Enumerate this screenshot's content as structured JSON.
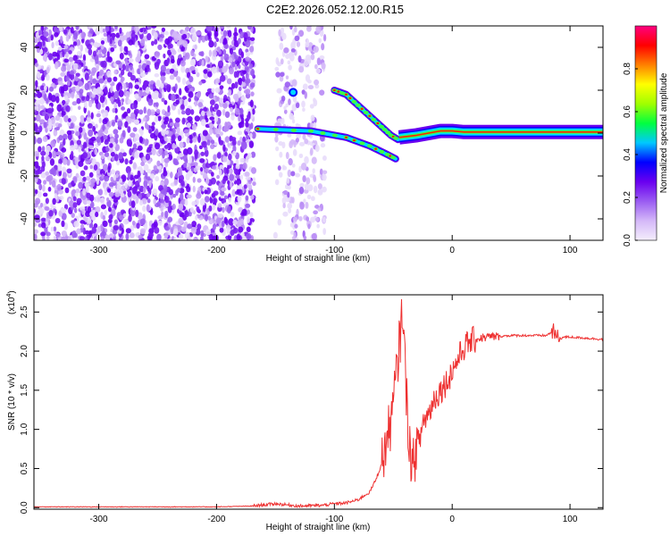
{
  "title": "C2E2.2026.052.12.00.R15",
  "chart_data": [
    {
      "type": "heatmap",
      "xlabel": "Height of straight line (km)",
      "ylabel": "Frequency (Hz)",
      "xlim": [
        -355,
        128
      ],
      "ylim": [
        -50,
        50
      ],
      "x_ticks": [
        -300,
        -200,
        -100,
        0,
        100
      ],
      "y_ticks": [
        -40,
        -20,
        0,
        20,
        40
      ],
      "colorbar": {
        "label": "Normalized spectral amplitude",
        "range": [
          0,
          1
        ],
        "ticks": [
          "0.0",
          "0.2",
          "0.4",
          "0.6",
          "0.8"
        ],
        "colors": [
          "#f4eefc",
          "#d4b8f8",
          "#9a5cf2",
          "#6a00f0",
          "#0000ff",
          "#00c8ff",
          "#00ff40",
          "#a0ff00",
          "#ffff00",
          "#ff8000",
          "#ff0000",
          "#ff0080"
        ]
      },
      "features": {
        "noise_region_x": [
          -355,
          -168
        ],
        "noise_band_2_x": [
          -150,
          -108
        ],
        "carrier_line": [
          [
            -165,
            2
          ],
          [
            -120,
            1
          ],
          [
            -90,
            -2
          ],
          [
            -70,
            -6
          ],
          [
            -55,
            -10
          ],
          [
            -48,
            -12
          ]
        ],
        "upper_arc": [
          [
            -100,
            20
          ],
          [
            -90,
            18
          ],
          [
            -80,
            13
          ],
          [
            -70,
            8
          ],
          [
            -60,
            3
          ],
          [
            -52,
            -1
          ],
          [
            -46,
            -3
          ]
        ],
        "isolated_blob": [
          -135,
          19
        ],
        "converged_line": [
          [
            -45,
            -2
          ],
          [
            -30,
            -1
          ],
          [
            -10,
            1
          ],
          [
            0,
            1
          ],
          [
            10,
            0.5
          ],
          [
            128,
            0.5
          ]
        ]
      }
    },
    {
      "type": "line",
      "xlabel": "Height of straight line (km)",
      "ylabel": "SNR (10 * v/v)",
      "y_multiplier": "(x10",
      "y_multiplier_exp": "4",
      "y_multiplier_close": ")",
      "xlim": [
        -355,
        128
      ],
      "ylim": [
        -0.02,
        2.72
      ],
      "x_ticks": [
        -300,
        -200,
        -100,
        0,
        100
      ],
      "y_ticks": [
        "0.0",
        "0.5",
        "1.0",
        "1.5",
        "2.0",
        "2.5"
      ],
      "color": "#ee3030",
      "series": [
        {
          "x": [
            -355,
            -300,
            -250,
            -200,
            -170,
            -150,
            -130,
            -110,
            -100,
            -90,
            -80,
            -70,
            -65,
            -60,
            -55,
            -52,
            -50,
            -48,
            -46,
            -44,
            -42,
            -40,
            -38,
            -36,
            -34,
            -32,
            -30,
            -28,
            -25,
            -20,
            -15,
            -10,
            -5,
            0,
            5,
            10,
            15,
            20,
            25,
            30,
            40,
            50,
            60,
            70,
            80,
            85,
            88,
            90,
            95,
            100,
            110,
            120,
            128
          ],
          "y": [
            0.01,
            0.01,
            0.01,
            0.01,
            0.02,
            0.05,
            0.02,
            0.03,
            0.05,
            0.06,
            0.1,
            0.2,
            0.35,
            0.55,
            0.9,
            1.1,
            1.3,
            1.6,
            1.9,
            2.2,
            2.6,
            1.8,
            1.2,
            0.8,
            0.5,
            0.6,
            0.9,
            0.8,
            1.1,
            1.2,
            1.4,
            1.5,
            1.6,
            1.75,
            1.9,
            2.05,
            2.12,
            2.15,
            2.17,
            2.18,
            2.19,
            2.2,
            2.2,
            2.2,
            2.2,
            2.25,
            2.2,
            2.15,
            2.18,
            2.18,
            2.17,
            2.16,
            2.15
          ]
        }
      ]
    }
  ]
}
